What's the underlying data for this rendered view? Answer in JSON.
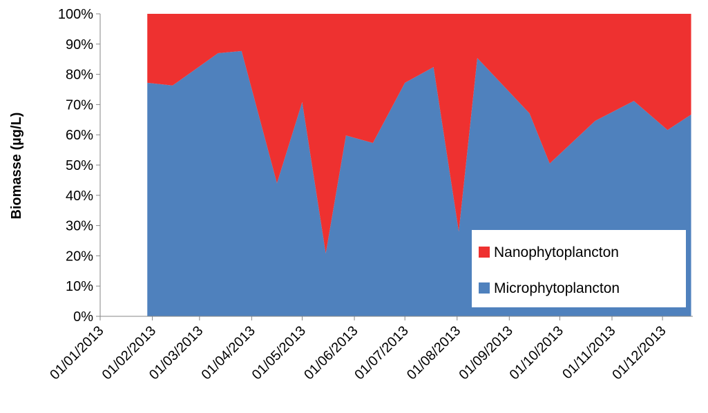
{
  "chart_data": {
    "type": "stacked-area-percent",
    "y_label": "Biomasse  (µg/L)",
    "x": [
      "2013-01-29",
      "2013-02-13",
      "2013-03-12",
      "2013-03-26",
      "2013-04-16",
      "2013-05-01",
      "2013-05-15",
      "2013-05-27",
      "2013-06-12",
      "2013-07-01",
      "2013-07-18",
      "2013-08-02",
      "2013-08-13",
      "2013-09-13",
      "2013-09-25",
      "2013-10-22",
      "2013-11-14",
      "2013-12-04",
      "2013-12-18"
    ],
    "series": [
      {
        "name": "Microphytoplancton",
        "color": "#4f81bd",
        "values": [
          77.2,
          76.3,
          87,
          87.7,
          44,
          70.8,
          20.8,
          59.8,
          57.3,
          77.2,
          82.4,
          28,
          85.4,
          67.1,
          50.5,
          64.6,
          71.2,
          61.6,
          66.7
        ]
      },
      {
        "name": "Nanophytoplancton",
        "color": "#ee3130",
        "values": [
          22.8,
          23.7,
          13,
          12.3,
          56,
          29.2,
          79.2,
          40.2,
          42.7,
          22.8,
          17.6,
          72,
          14.6,
          32.9,
          49.5,
          35.4,
          28.8,
          38.4,
          33.3
        ]
      }
    ],
    "xlim": [
      "2013-01-01",
      "2013-12-19"
    ],
    "xticks": [
      {
        "value": "2013-01-01",
        "label": "01/01/2013"
      },
      {
        "value": "2013-02-01",
        "label": "01/02/2013"
      },
      {
        "value": "2013-03-01",
        "label": "01/03/2013"
      },
      {
        "value": "2013-04-01",
        "label": "01/04/2013"
      },
      {
        "value": "2013-05-01",
        "label": "01/05/2013"
      },
      {
        "value": "2013-06-01",
        "label": "01/06/2013"
      },
      {
        "value": "2013-07-01",
        "label": "01/07/2013"
      },
      {
        "value": "2013-08-01",
        "label": "01/08/2013"
      },
      {
        "value": "2013-09-01",
        "label": "01/09/2013"
      },
      {
        "value": "2013-10-01",
        "label": "01/10/2013"
      },
      {
        "value": "2013-11-01",
        "label": "01/11/2013"
      },
      {
        "value": "2013-12-01",
        "label": "01/12/2013"
      }
    ],
    "ylim": [
      0,
      100
    ],
    "yticks": [
      {
        "value": 0,
        "label": "0%"
      },
      {
        "value": 10,
        "label": "10%"
      },
      {
        "value": 20,
        "label": "20%"
      },
      {
        "value": 30,
        "label": "30%"
      },
      {
        "value": 40,
        "label": "40%"
      },
      {
        "value": 50,
        "label": "50%"
      },
      {
        "value": 60,
        "label": "60%"
      },
      {
        "value": 70,
        "label": "70%"
      },
      {
        "value": 80,
        "label": "80%"
      },
      {
        "value": 90,
        "label": "90%"
      },
      {
        "value": 100,
        "label": "100%"
      }
    ],
    "legend": "lower-right"
  }
}
